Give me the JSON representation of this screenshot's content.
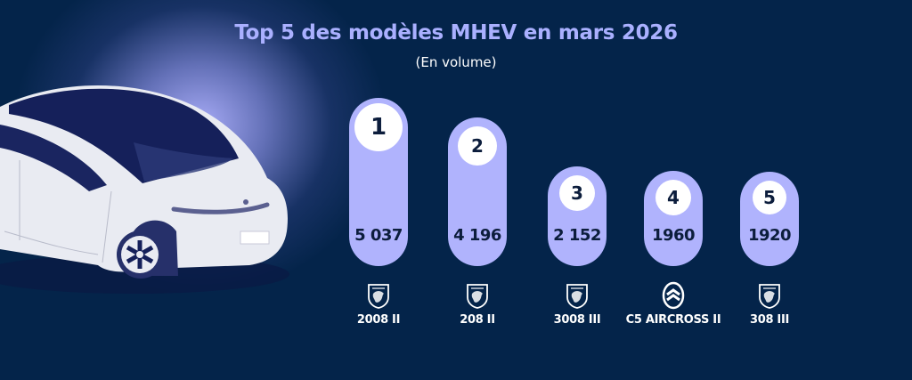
{
  "header": {
    "title": "Top 5 des modèles MHEV en mars 2026",
    "subtitle": "(En volume)"
  },
  "colors": {
    "background": "#04244a",
    "pill": "#b0b3fd",
    "title": "#aab0ff",
    "text_dark": "#0c1d3c"
  },
  "chart_data": {
    "type": "bar",
    "title": "Top 5 des modèles MHEV en mars 2026",
    "subtitle": "(En volume)",
    "categories": [
      "2008 II",
      "208 II",
      "3008 III",
      "C5 AIRCROSS II",
      "308 III"
    ],
    "values": [
      5037,
      4196,
      2152,
      1960,
      1920
    ],
    "value_labels": [
      "5 037",
      "4 196",
      "2 152",
      "1960",
      "1920"
    ],
    "ranks": [
      "1",
      "2",
      "3",
      "4",
      "5"
    ],
    "brands": [
      "peugeot-logo-icon",
      "peugeot-logo-icon",
      "peugeot-logo-icon",
      "citroen-logo-icon",
      "peugeot-logo-icon"
    ],
    "xlabel": "",
    "ylabel": "",
    "grid": false,
    "legend": "none"
  }
}
